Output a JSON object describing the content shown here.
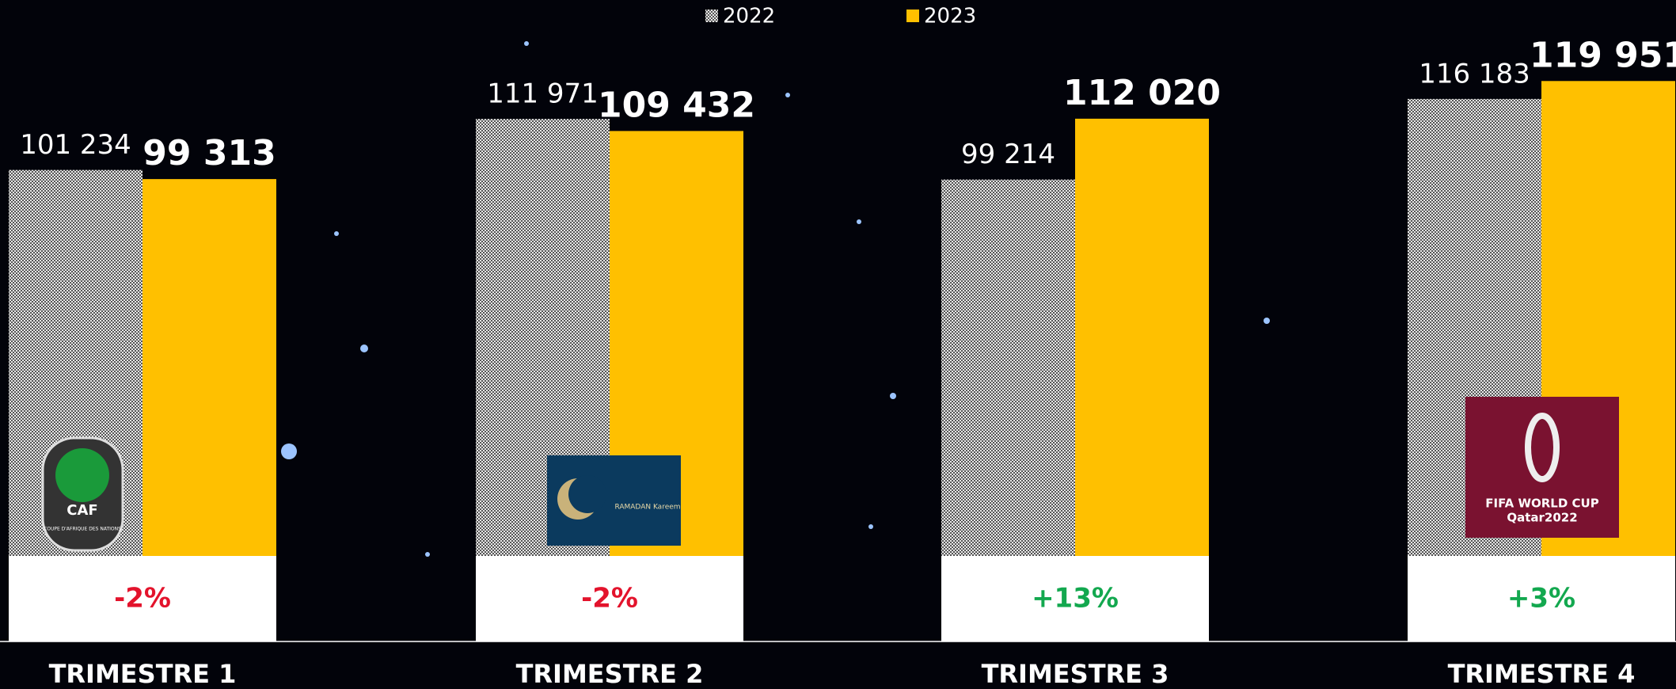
{
  "chart_data": {
    "type": "bar",
    "categories": [
      "TRIMESTRE 1",
      "TRIMESTRE 2",
      "TRIMESTRE 3",
      "TRIMESTRE 4"
    ],
    "series": [
      {
        "name": "2022",
        "color": "#c8c8c8",
        "values": [
          101234,
          111971,
          99214,
          116183
        ],
        "value_labels": [
          "101 234",
          "111 971",
          "99 214",
          "116 183"
        ]
      },
      {
        "name": "2023",
        "color": "#ffc000",
        "values": [
          99313,
          109432,
          112020,
          119951
        ],
        "value_labels": [
          "99 313",
          "109 432",
          "112 020",
          "119 951"
        ]
      }
    ],
    "ylim": [
      20000,
      137000
    ],
    "change_labels": [
      "-2%",
      "-2%",
      "+13%",
      "+3%"
    ],
    "change_colors": [
      "#e3132c",
      "#e3132c",
      "#13a84f",
      "#13a84f"
    ]
  },
  "logos": {
    "caf": "CAF",
    "caf_sub": "COUPE D'AFRIQUE DES NATIONS",
    "ramadan": "RAMADAN Kareem",
    "fifa": "FIFA WORLD CUP",
    "fifa_sub": "Qatar2022"
  }
}
